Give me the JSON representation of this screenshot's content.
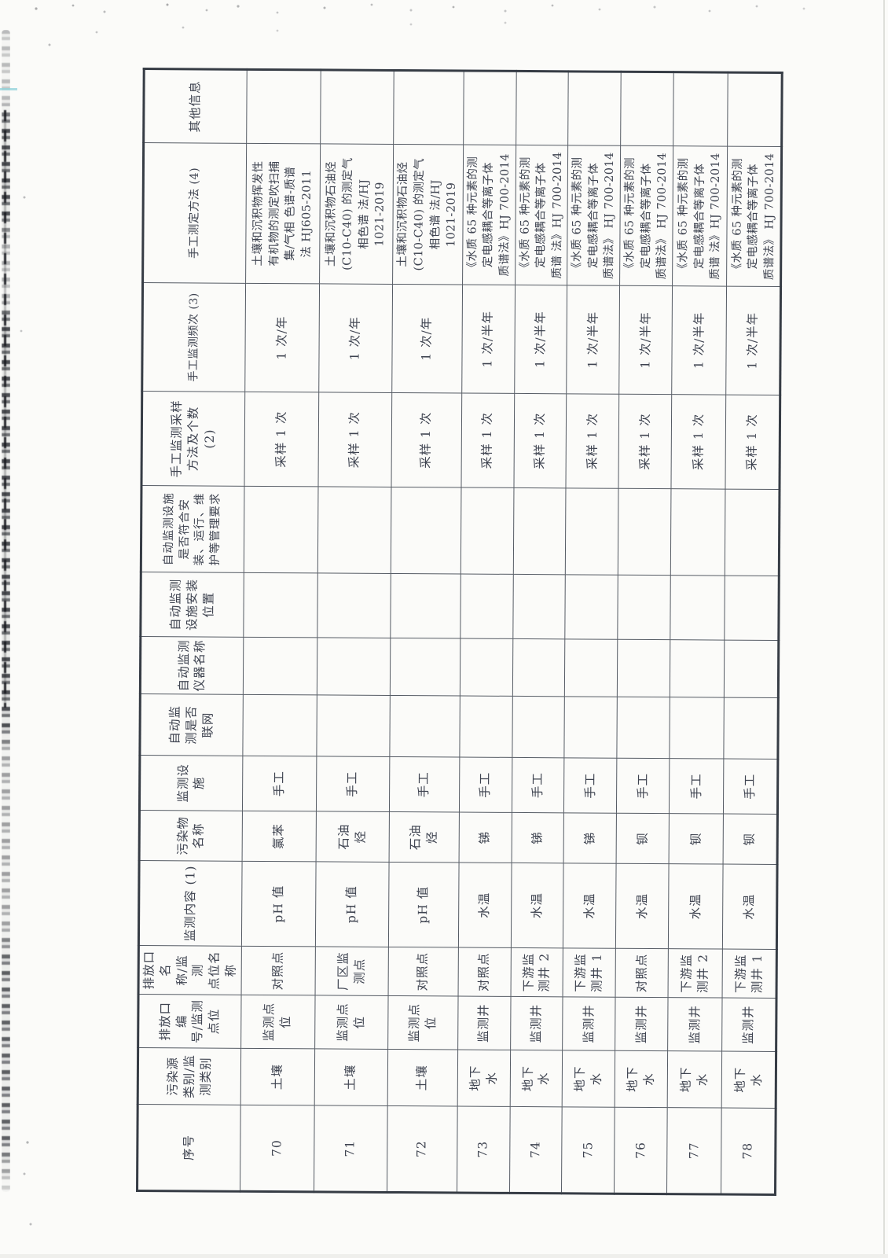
{
  "page": {
    "paper_color": "#fbfbf9",
    "ink_color": "#3e4350",
    "border_color": "#555b64",
    "orientation_note": "table rotated 90 degrees counterclockwise on scanned page"
  },
  "table": {
    "headers": [
      "序号",
      "污染源\n类别/监\n测类别",
      "排放口编\n号/监测\n点位",
      "排放口名\n称/监测\n点位名称",
      "监测内容 (1)",
      "污染物\n名称",
      "监测设施",
      "自动监\n测是否\n联网",
      "自动监测\n仪器名称",
      "自动监测\n设施安装\n位置",
      "自动监测设施\n是否符合安\n装、运行、维\n护等管理要求",
      "手工监测采样\n方法及个数\n(2)",
      "手工监测频次 (3)",
      "手工测定方法 (4)",
      "其他信息"
    ],
    "rows": [
      [
        "70",
        "土壤",
        "监测点\n位",
        "对照点",
        "pH 值",
        "氯苯",
        "手工",
        "",
        "",
        "",
        "",
        "采样 1 次",
        "1 次/年",
        "土壤和沉积物挥发性\n有机物的测定吹扫捕\n集/气相 色谱-质谱\n法 HJ605-2011",
        ""
      ],
      [
        "71",
        "土壤",
        "监测点\n位",
        "厂区监\n测点",
        "pH 值",
        "石油\n烃",
        "手工",
        "",
        "",
        "",
        "",
        "采样 1 次",
        "1 次/年",
        "土壤和沉积物石油烃\n(C10-C40) 的测定气\n相色谱 法/HJ\n1021-2019",
        ""
      ],
      [
        "72",
        "土壤",
        "监测点\n位",
        "对照点",
        "pH 值",
        "石油\n烃",
        "手工",
        "",
        "",
        "",
        "",
        "采样 1 次",
        "1 次/年",
        "土壤和沉积物石油烃\n(C10-C40) 的测定气\n相色谱 法/HJ\n1021-2019",
        ""
      ],
      [
        "73",
        "地下\n水",
        "监测井",
        "对照点",
        "水温",
        "锑",
        "手工",
        "",
        "",
        "",
        "",
        "采样 1 次",
        "1 次/半年",
        "《水质 65 种元素的测\n定电感耦合等离子体\n质谱法》HJ 700-2014",
        ""
      ],
      [
        "74",
        "地下\n水",
        "监测井",
        "下游监\n测井 2",
        "水温",
        "锑",
        "手工",
        "",
        "",
        "",
        "",
        "采样 1 次",
        "1 次/半年",
        "《水质 65 种元素的测\n定电感耦合等离子体\n质谱 法》HJ 700-2014",
        ""
      ],
      [
        "75",
        "地下\n水",
        "监测井",
        "下游监\n测井 1",
        "水温",
        "锑",
        "手工",
        "",
        "",
        "",
        "",
        "采样 1 次",
        "1 次/半年",
        "《水质 65 种元素的测\n定电感耦合等离子体\n质谱法》 HJ 700-2014",
        ""
      ],
      [
        "76",
        "地下\n水",
        "监测井",
        "对照点",
        "水温",
        "钡",
        "手工",
        "",
        "",
        "",
        "",
        "采样 1 次",
        "1 次/半年",
        "《水质 65 种元素的测\n定电感耦合等离子体\n质谱法》 HJ 700-2014",
        ""
      ],
      [
        "77",
        "地下\n水",
        "监测井",
        "下游监\n测井 2",
        "水温",
        "钡",
        "手工",
        "",
        "",
        "",
        "",
        "采样 1 次",
        "1 次/半年",
        "《水质 65 种元素的测\n定电感耦合等离子体\n质谱 法》HJ 700-2014",
        ""
      ],
      [
        "78",
        "地下\n水",
        "监测井",
        "下游监\n测井 1",
        "水温",
        "钡",
        "手工",
        "",
        "",
        "",
        "",
        "采样 1 次",
        "1 次/半年",
        "《水质 65 种元素的测\n定电感耦合等离子体\n质谱法》 HJ 700-2014",
        ""
      ]
    ]
  }
}
